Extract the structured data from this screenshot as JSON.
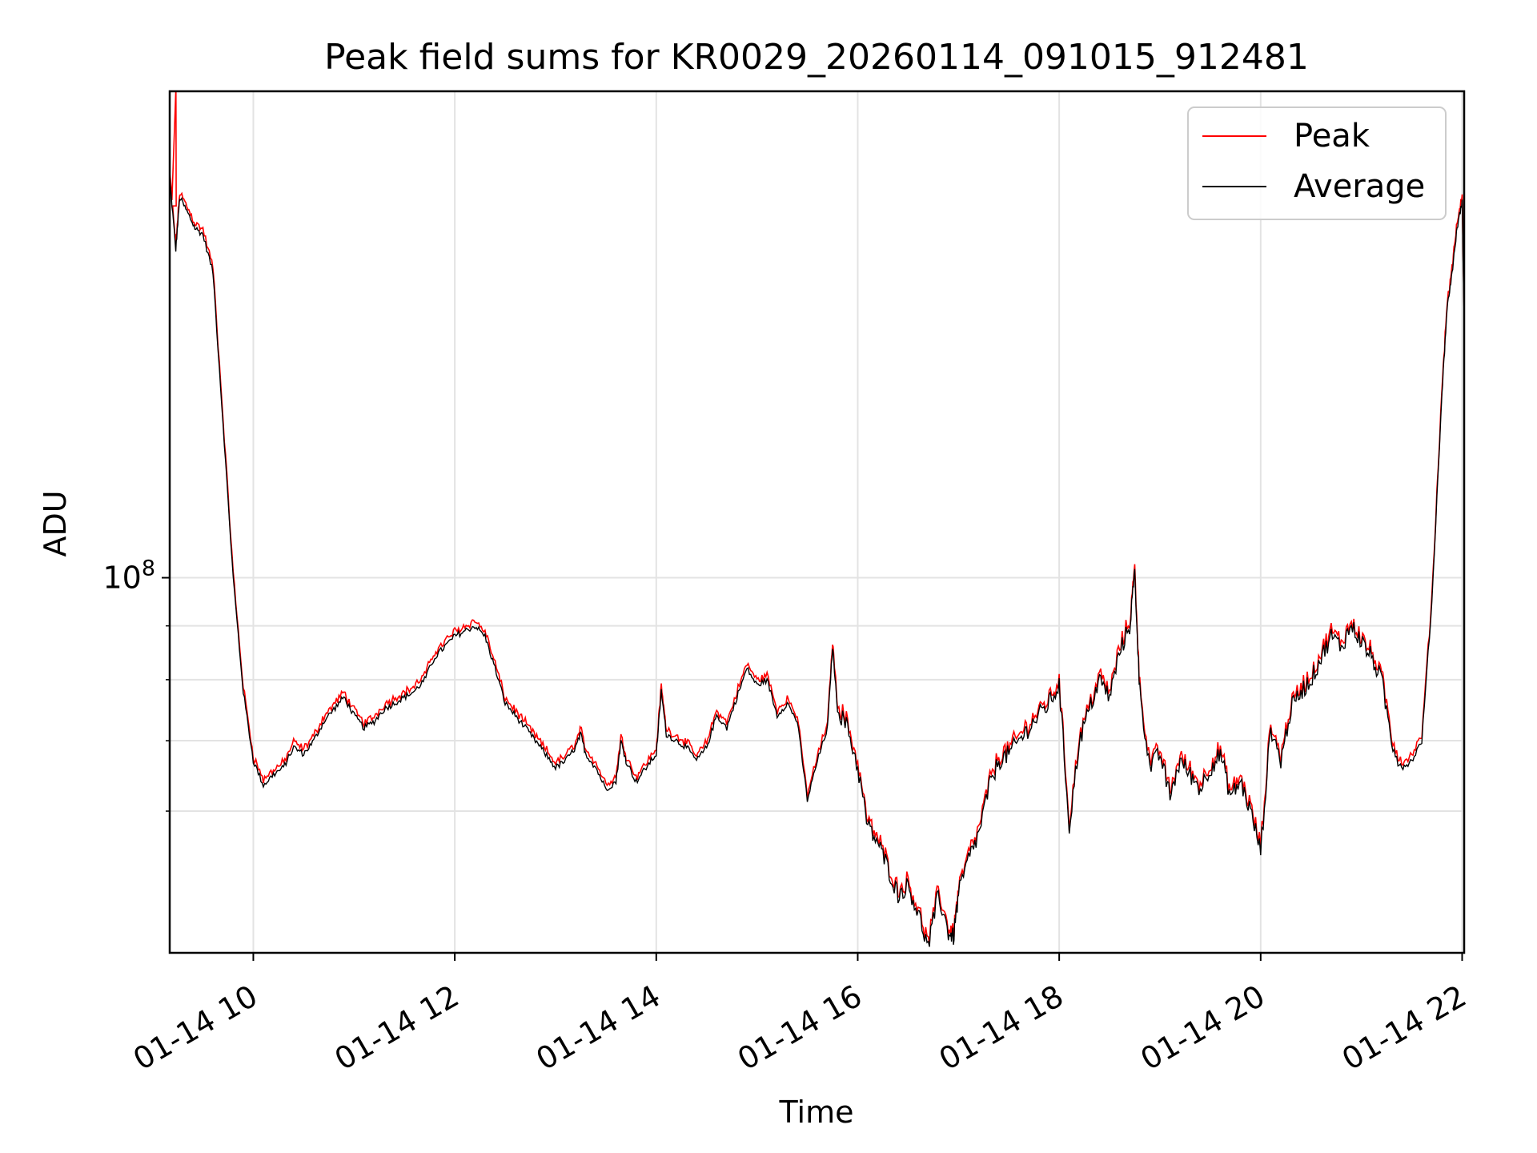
{
  "chart_data": {
    "type": "line",
    "title": "Peak field sums for KR0029_20260114_091015_912481",
    "xlabel": "Time",
    "ylabel": "ADU",
    "yscale": "log",
    "ylim": [
      44000000,
      290000000
    ],
    "xlim_hours": [
      9.17,
      22.02
    ],
    "grid": true,
    "legend_position": "top-right",
    "x_ticks": [
      {
        "hour": 10,
        "label": "01-14 10"
      },
      {
        "hour": 12,
        "label": "01-14 12"
      },
      {
        "hour": 14,
        "label": "01-14 14"
      },
      {
        "hour": 16,
        "label": "01-14 16"
      },
      {
        "hour": 18,
        "label": "01-14 18"
      },
      {
        "hour": 20,
        "label": "01-14 20"
      },
      {
        "hour": 22,
        "label": "01-14 22"
      }
    ],
    "y_major_ticks": [
      {
        "value": 100000000,
        "base": "10",
        "exp": "8"
      }
    ],
    "y_minor_ticks": [
      60000000,
      70000000,
      80000000,
      90000000
    ],
    "series": [
      {
        "name": "Peak",
        "color": "#ff0000"
      },
      {
        "name": "Average",
        "color": "#000000"
      }
    ],
    "average_points": [
      [
        9.17,
        240000000
      ],
      [
        9.23,
        205000000
      ],
      [
        9.27,
        230000000
      ],
      [
        9.35,
        222000000
      ],
      [
        9.42,
        215000000
      ],
      [
        9.5,
        212000000
      ],
      [
        9.6,
        195000000
      ],
      [
        9.7,
        140000000
      ],
      [
        9.8,
        100000000
      ],
      [
        9.9,
        78000000
      ],
      [
        10.0,
        67000000
      ],
      [
        10.1,
        63500000
      ],
      [
        10.2,
        65000000
      ],
      [
        10.3,
        66000000
      ],
      [
        10.4,
        69000000
      ],
      [
        10.5,
        68000000
      ],
      [
        10.6,
        70000000
      ],
      [
        10.7,
        73000000
      ],
      [
        10.8,
        75000000
      ],
      [
        10.9,
        77000000
      ],
      [
        11.0,
        74000000
      ],
      [
        11.1,
        72000000
      ],
      [
        11.2,
        73000000
      ],
      [
        11.3,
        75000000
      ],
      [
        11.4,
        76000000
      ],
      [
        11.5,
        77000000
      ],
      [
        11.6,
        78000000
      ],
      [
        11.7,
        80000000
      ],
      [
        11.8,
        84000000
      ],
      [
        11.9,
        86000000
      ],
      [
        12.0,
        88000000
      ],
      [
        12.1,
        89000000
      ],
      [
        12.2,
        90000000
      ],
      [
        12.3,
        88000000
      ],
      [
        12.4,
        82000000
      ],
      [
        12.5,
        76000000
      ],
      [
        12.6,
        74000000
      ],
      [
        12.7,
        72000000
      ],
      [
        12.8,
        70000000
      ],
      [
        12.9,
        68000000
      ],
      [
        13.0,
        66000000
      ],
      [
        13.1,
        67000000
      ],
      [
        13.2,
        69000000
      ],
      [
        13.25,
        71000000
      ],
      [
        13.3,
        68000000
      ],
      [
        13.4,
        66000000
      ],
      [
        13.5,
        63000000
      ],
      [
        13.6,
        64000000
      ],
      [
        13.65,
        70000000
      ],
      [
        13.7,
        67000000
      ],
      [
        13.8,
        64000000
      ],
      [
        13.9,
        66000000
      ],
      [
        14.0,
        68000000
      ],
      [
        14.05,
        78000000
      ],
      [
        14.1,
        71000000
      ],
      [
        14.2,
        70000000
      ],
      [
        14.3,
        69000000
      ],
      [
        14.4,
        67000000
      ],
      [
        14.5,
        69000000
      ],
      [
        14.6,
        74000000
      ],
      [
        14.7,
        72000000
      ],
      [
        14.8,
        77000000
      ],
      [
        14.9,
        82000000
      ],
      [
        15.0,
        79000000
      ],
      [
        15.1,
        80000000
      ],
      [
        15.2,
        74000000
      ],
      [
        15.3,
        76000000
      ],
      [
        15.4,
        73000000
      ],
      [
        15.5,
        61500000
      ],
      [
        15.6,
        67000000
      ],
      [
        15.7,
        72000000
      ],
      [
        15.75,
        86000000
      ],
      [
        15.8,
        75000000
      ],
      [
        15.9,
        72000000
      ],
      [
        16.0,
        66000000
      ],
      [
        16.1,
        58000000
      ],
      [
        16.2,
        56000000
      ],
      [
        16.3,
        53000000
      ],
      [
        16.4,
        50000000
      ],
      [
        16.5,
        51000000
      ],
      [
        16.6,
        48000000
      ],
      [
        16.7,
        44500000
      ],
      [
        16.8,
        50000000
      ],
      [
        16.9,
        46000000
      ],
      [
        16.95,
        45500000
      ],
      [
        17.0,
        50000000
      ],
      [
        17.1,
        54000000
      ],
      [
        17.2,
        57000000
      ],
      [
        17.3,
        63000000
      ],
      [
        17.4,
        67000000
      ],
      [
        17.5,
        68000000
      ],
      [
        17.6,
        70000000
      ],
      [
        17.7,
        72000000
      ],
      [
        17.8,
        74000000
      ],
      [
        17.9,
        76000000
      ],
      [
        18.0,
        79000000
      ],
      [
        18.1,
        58000000
      ],
      [
        18.2,
        70000000
      ],
      [
        18.3,
        75000000
      ],
      [
        18.4,
        80000000
      ],
      [
        18.5,
        77000000
      ],
      [
        18.6,
        85000000
      ],
      [
        18.7,
        90000000
      ],
      [
        18.75,
        101000000
      ],
      [
        18.8,
        78000000
      ],
      [
        18.9,
        66000000
      ],
      [
        19.0,
        68000000
      ],
      [
        19.1,
        62000000
      ],
      [
        19.2,
        67000000
      ],
      [
        19.3,
        65000000
      ],
      [
        19.4,
        63000000
      ],
      [
        19.5,
        66000000
      ],
      [
        19.6,
        68000000
      ],
      [
        19.7,
        62000000
      ],
      [
        19.8,
        64000000
      ],
      [
        19.9,
        60000000
      ],
      [
        20.0,
        55000000
      ],
      [
        20.1,
        72000000
      ],
      [
        20.2,
        67000000
      ],
      [
        20.3,
        75000000
      ],
      [
        20.4,
        78000000
      ],
      [
        20.5,
        80000000
      ],
      [
        20.6,
        84000000
      ],
      [
        20.7,
        88000000
      ],
      [
        20.8,
        86000000
      ],
      [
        20.9,
        90000000
      ],
      [
        21.0,
        87000000
      ],
      [
        21.1,
        84000000
      ],
      [
        21.2,
        80000000
      ],
      [
        21.3,
        70000000
      ],
      [
        21.4,
        66000000
      ],
      [
        21.5,
        67000000
      ],
      [
        21.6,
        70000000
      ],
      [
        21.7,
        95000000
      ],
      [
        21.8,
        150000000
      ],
      [
        21.85,
        180000000
      ],
      [
        21.9,
        195000000
      ],
      [
        21.95,
        215000000
      ],
      [
        22.0,
        228000000
      ],
      [
        22.02,
        175000000
      ]
    ],
    "peak_spike": {
      "hour": 9.23,
      "value": 290000000
    }
  }
}
